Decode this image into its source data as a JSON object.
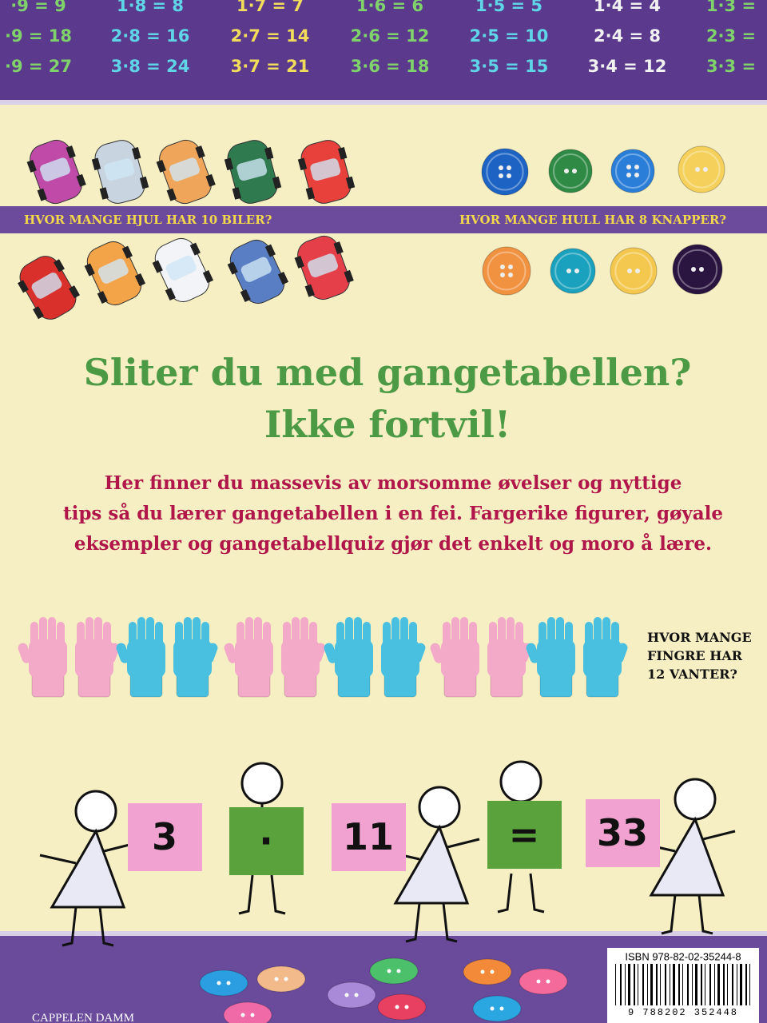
{
  "times_table": {
    "rows": [
      [
        "·9 = 9",
        "1·8 = 8",
        "1·7 = 7",
        "1·6 = 6",
        "1·5 = 5",
        "1·4 = 4",
        "1·3 ="
      ],
      [
        "·9 = 18",
        "2·8 = 16",
        "2·7 = 14",
        "2·6 = 12",
        "2·5 = 10",
        "2·4 = 8",
        "2·3 ="
      ],
      [
        "·9 = 27",
        "3·8 = 24",
        "3·7 = 21",
        "3·6 = 18",
        "3·5 = 15",
        "3·4 = 12",
        "3·3 ="
      ]
    ]
  },
  "questions": {
    "cars": "HVOR MANGE HJUL HAR 10 BILER?",
    "buttons": "HVOR MANGE HULL HAR 8 KNAPPER?",
    "gloves": [
      "HVOR MANGE",
      "FINGRE HAR",
      "12 VANTER?"
    ]
  },
  "headline": [
    "Sliter du med gangetabellen?",
    "Ikke fortvil!"
  ],
  "body": [
    "Her finner du massevis av morsomme øvelser og nyttige",
    "tips så du lærer gangetabellen i en fei. Fargerike figurer, gøyale",
    "eksempler og gangetabellquiz gjør det enkelt og moro å lære."
  ],
  "equation": [
    "3",
    "·",
    "11",
    "=",
    "33"
  ],
  "isbn": "ISBN 978-82-02-35244-8",
  "barcode_digits": "9 788202 352448",
  "publisher": "CAPPELEN DAMM"
}
